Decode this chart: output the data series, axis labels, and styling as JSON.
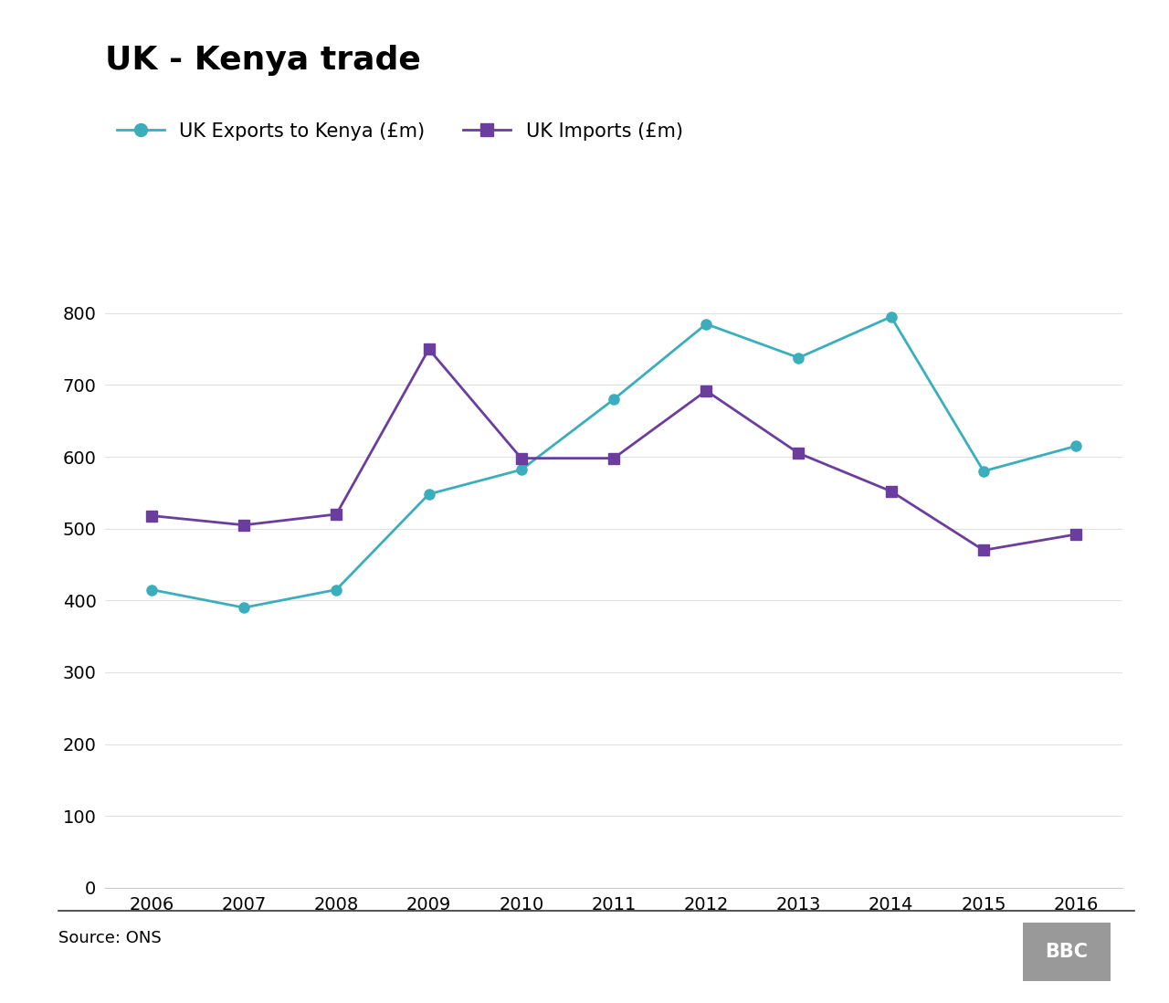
{
  "title": "UK - Kenya trade",
  "years": [
    2006,
    2007,
    2008,
    2009,
    2010,
    2011,
    2012,
    2013,
    2014,
    2015,
    2016
  ],
  "exports": [
    415,
    390,
    415,
    548,
    582,
    680,
    785,
    738,
    795,
    580,
    615
  ],
  "imports": [
    518,
    505,
    520,
    750,
    598,
    598,
    692,
    605,
    552,
    470,
    492
  ],
  "exports_color": "#3aaebd",
  "imports_color": "#6a3d9f",
  "exports_label": "UK Exports to Kenya (£m)",
  "imports_label": "UK Imports (£m)",
  "ylim": [
    0,
    880
  ],
  "yticks": [
    0,
    100,
    200,
    300,
    400,
    500,
    600,
    700,
    800
  ],
  "source_text": "Source: ONS",
  "bbc_text": "BBC",
  "background_color": "#ffffff",
  "line_width": 2.0,
  "marker_size": 8,
  "title_fontsize": 26,
  "legend_fontsize": 15,
  "tick_fontsize": 14,
  "footer_fontsize": 13,
  "grid_color": "#e0e0e0",
  "spine_color": "#cccccc",
  "footer_line_color": "#333333",
  "bbc_bg_color": "#999999"
}
